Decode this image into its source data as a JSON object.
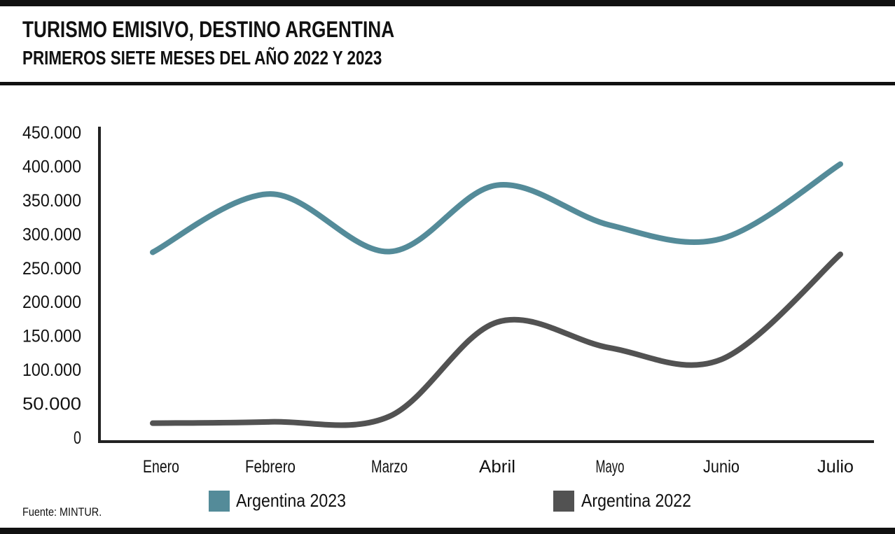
{
  "header": {
    "title": "TURISMO EMISIVO, DESTINO ARGENTINA",
    "subtitle": "PRIMEROS SIETE MESES DEL AÑO 2022 Y 2023"
  },
  "footer": {
    "source": "Fuente: MINTUR."
  },
  "chart_data": {
    "type": "line",
    "title": "TURISMO EMISIVO, DESTINO ARGENTINA",
    "subtitle": "PRIMEROS SIETE MESES DEL AÑO 2022 Y 2023",
    "xlabel": "",
    "ylabel": "",
    "categories": [
      "Enero",
      "Febrero",
      "Marzo",
      "Abril",
      "Mayo",
      "Junio",
      "Julio"
    ],
    "ylim": [
      0,
      450000
    ],
    "yticks": [
      0,
      50000,
      100000,
      150000,
      200000,
      250000,
      300000,
      350000,
      400000,
      450000
    ],
    "ytick_labels": [
      "0",
      "50.000",
      "100.000",
      "150.000",
      "200.000",
      "250.000",
      "300.000",
      "350.000",
      "400.000",
      "450.000"
    ],
    "grid": false,
    "legend_position": "bottom",
    "series": [
      {
        "name": "Argentina 2023",
        "color": "#548b99",
        "values": [
          273000,
          359000,
          274000,
          372000,
          313000,
          293000,
          403000
        ]
      },
      {
        "name": "Argentina 2022",
        "color": "#525252",
        "values": [
          21000,
          23000,
          31000,
          170000,
          132000,
          115000,
          270000
        ]
      }
    ]
  }
}
